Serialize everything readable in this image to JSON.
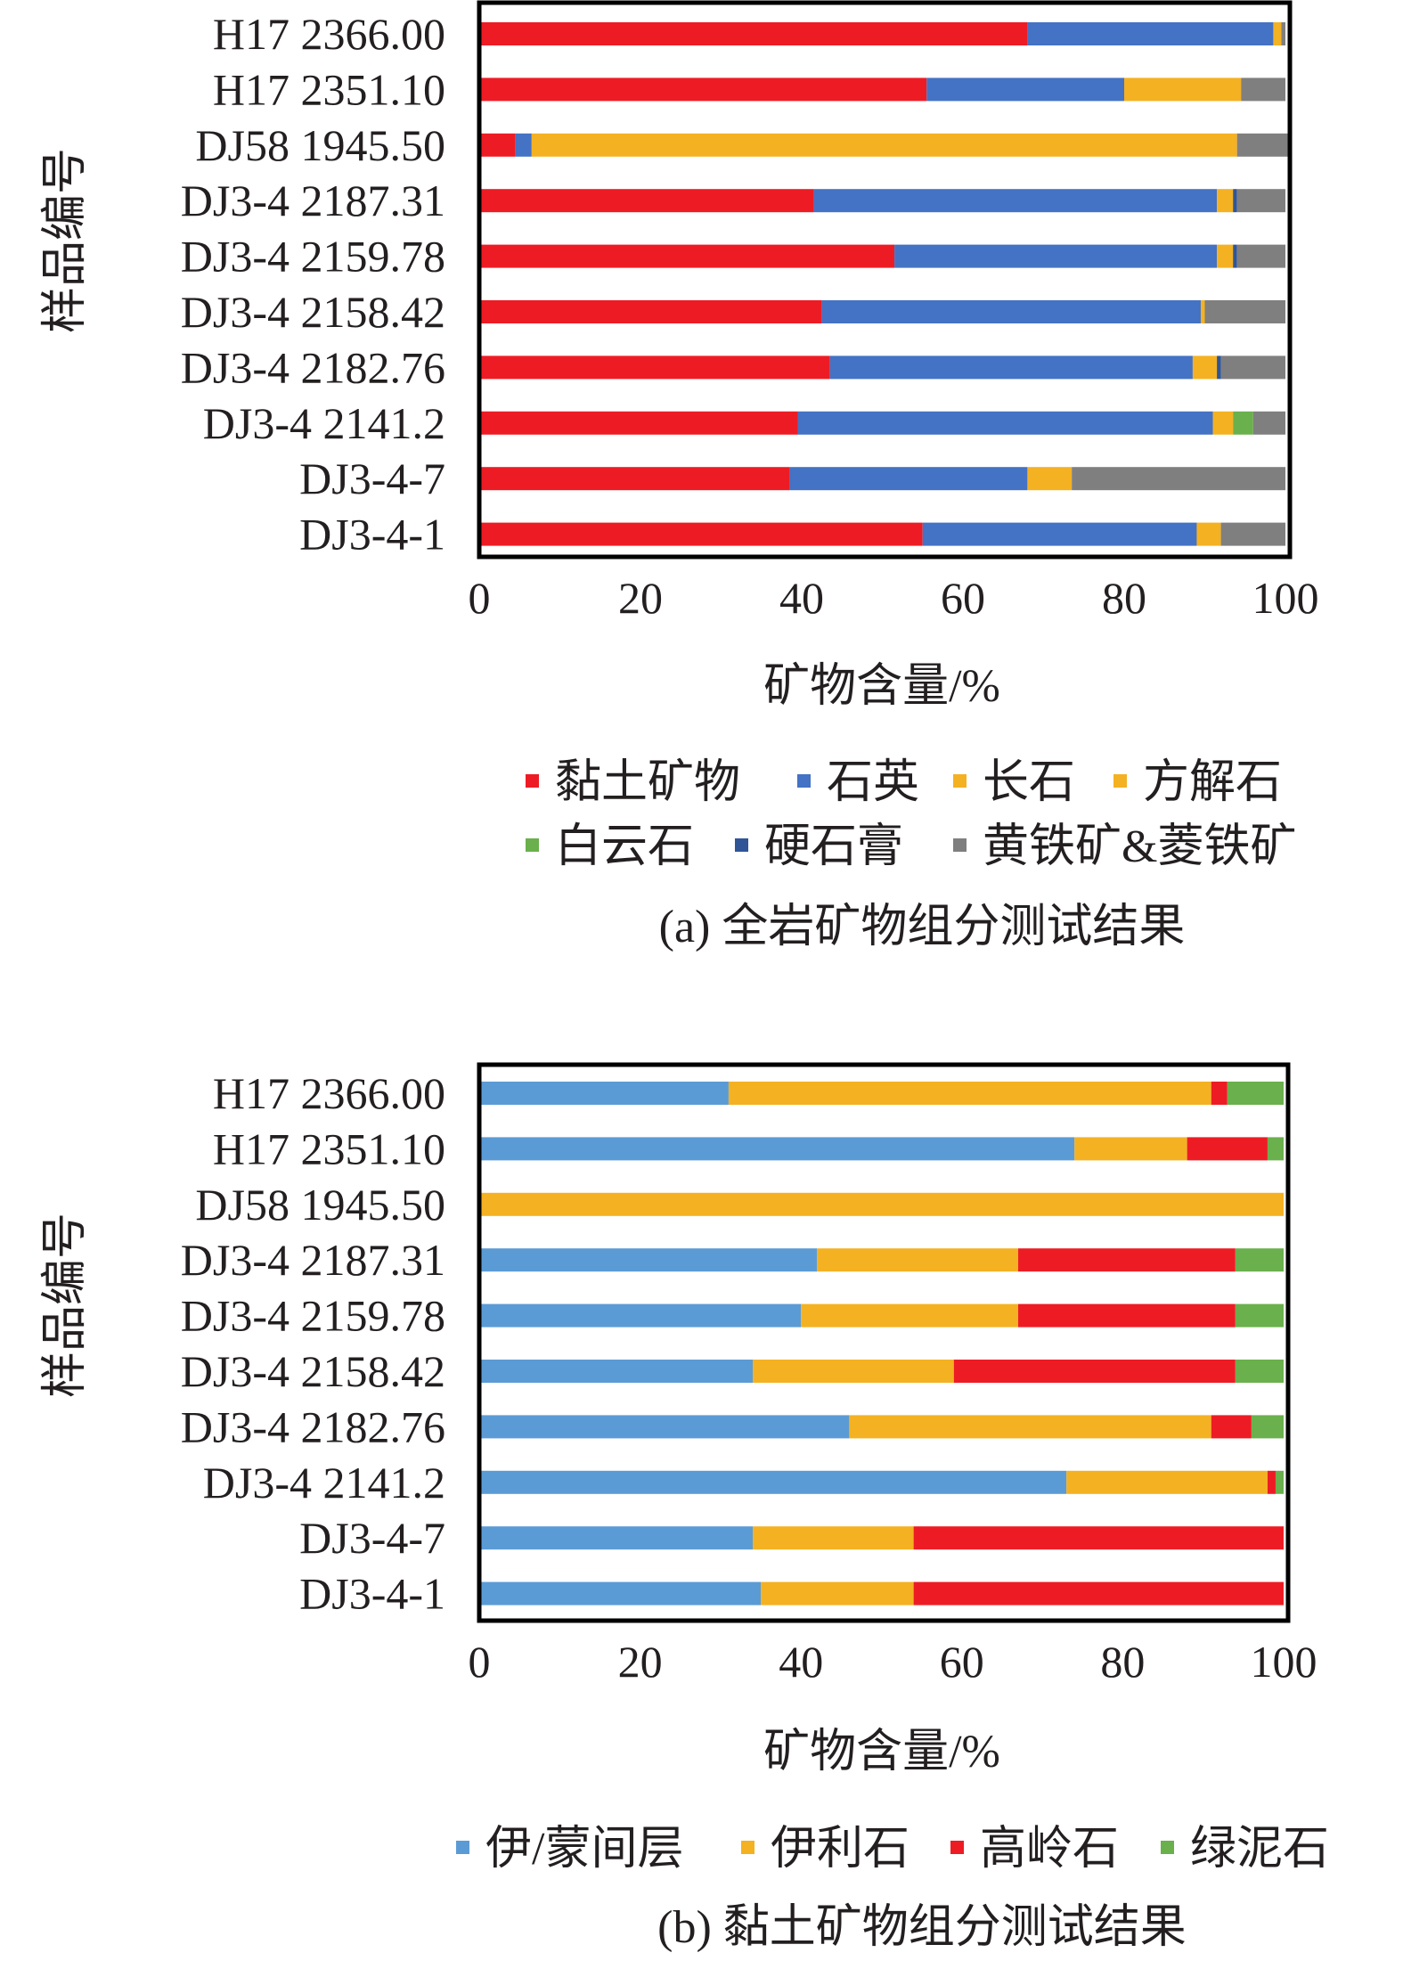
{
  "colors": {
    "clay": "#ed1c24",
    "quartz": "#4472c4",
    "feldspar": "#f4b122",
    "calcite": "#f4b122",
    "dolomite": "#6ab04c",
    "anhydrite": "#2f5597",
    "pyrite": "#7f7f7f",
    "illite_smectite": "#5b9bd5",
    "illite": "#f4b122",
    "kaolinite": "#ed1c24",
    "chlorite": "#6ab04c"
  },
  "chart_data": [
    {
      "type": "bar",
      "stacked": true,
      "orientation": "horizontal",
      "caption": "(a) 全岩矿物组分测试结果",
      "xlabel": "矿物含量/%",
      "ylabel": "样品编号",
      "xlim": [
        0,
        100
      ],
      "xticks": [
        "0",
        "20",
        "40",
        "60",
        "80",
        "100"
      ],
      "categories": [
        "H17 2366.00",
        "H17 2351.10",
        "DJ58 1945.50",
        "DJ3-4 2187.31",
        "DJ3-4 2159.78",
        "DJ3-4 2158.42",
        "DJ3-4 2182.76",
        "DJ3-4 2141.2",
        "DJ3-4-7",
        "DJ3-4-1"
      ],
      "series": [
        {
          "name": "黏土矿物",
          "color_key": "clay",
          "values": [
            68,
            55.5,
            4.5,
            41.5,
            51.5,
            42.5,
            43.5,
            39.5,
            38.5,
            55
          ]
        },
        {
          "name": "石英",
          "color_key": "quartz",
          "values": [
            30.5,
            24.5,
            2,
            50,
            40,
            47,
            45,
            51.5,
            29.5,
            34
          ]
        },
        {
          "name": "长石",
          "color_key": "feldspar",
          "values": [
            0.5,
            0,
            0,
            2,
            2,
            0,
            3,
            2.5,
            5.5,
            3
          ]
        },
        {
          "name": "方解石",
          "color_key": "calcite",
          "values": [
            0.5,
            14.5,
            87.5,
            0,
            0,
            0.5,
            0,
            0,
            0,
            0
          ]
        },
        {
          "name": "白云石",
          "color_key": "dolomite",
          "values": [
            0,
            0,
            0,
            0,
            0,
            0,
            0,
            2.5,
            0,
            0
          ]
        },
        {
          "name": "硬石膏",
          "color_key": "anhydrite",
          "values": [
            0,
            0,
            0,
            0.5,
            0.5,
            0,
            0.5,
            0,
            0,
            0
          ]
        },
        {
          "name": "黄铁矿&菱铁矿",
          "color_key": "pyrite",
          "values": [
            0.5,
            5.5,
            6.5,
            6,
            6,
            10,
            8,
            4,
            26.5,
            8
          ]
        }
      ]
    },
    {
      "type": "bar",
      "stacked": true,
      "orientation": "horizontal",
      "caption": "(b) 黏土矿物组分测试结果",
      "xlabel": "矿物含量/%",
      "ylabel": "样品编号",
      "xlim": [
        0,
        100
      ],
      "xticks": [
        "0",
        "20",
        "40",
        "60",
        "80",
        "100"
      ],
      "categories": [
        "H17 2366.00",
        "H17 2351.10",
        "DJ58 1945.50",
        "DJ3-4 2187.31",
        "DJ3-4 2159.78",
        "DJ3-4 2158.42",
        "DJ3-4 2182.76",
        "DJ3-4 2141.2",
        "DJ3-4-7",
        "DJ3-4-1"
      ],
      "series": [
        {
          "name": "伊/蒙间层",
          "color_key": "illite_smectite",
          "values": [
            31,
            74,
            0,
            42,
            40,
            34,
            46,
            73,
            34,
            35
          ]
        },
        {
          "name": "伊利石",
          "color_key": "illite",
          "values": [
            60,
            14,
            100,
            25,
            27,
            25,
            45,
            25,
            20,
            19
          ]
        },
        {
          "name": "高岭石",
          "color_key": "kaolinite",
          "values": [
            2,
            10,
            0,
            27,
            27,
            35,
            5,
            1,
            46,
            46
          ]
        },
        {
          "name": "绿泥石",
          "color_key": "chlorite",
          "values": [
            7,
            2,
            0,
            6,
            6,
            6,
            4,
            1,
            0,
            0
          ]
        }
      ]
    }
  ]
}
